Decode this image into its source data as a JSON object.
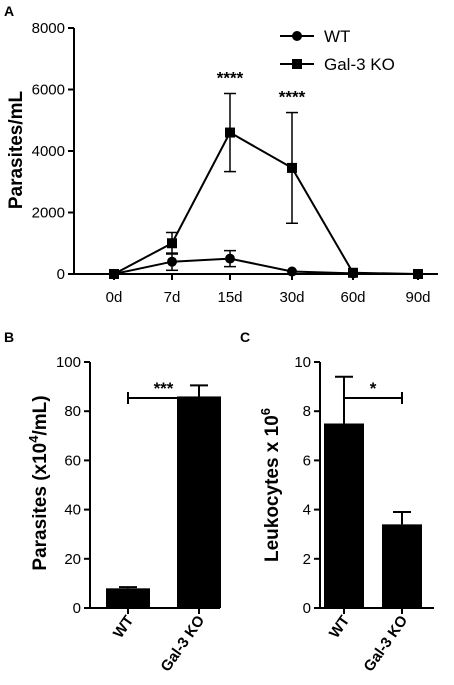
{
  "chart_data": [
    {
      "panel": "A",
      "type": "line",
      "x": [
        "0d",
        "7d",
        "15d",
        "30d",
        "60d",
        "90d"
      ],
      "ylabel": "Parasites/mL",
      "ylim": [
        0,
        8000
      ],
      "yticks": [
        "0",
        "2000",
        "4000",
        "6000",
        "8000"
      ],
      "legend_position": "top-right",
      "series": [
        {
          "name": "WT",
          "marker": "circle",
          "values": [
            0,
            400,
            500,
            80,
            20,
            null
          ],
          "err": [
            0,
            280,
            260,
            0,
            0,
            0
          ]
        },
        {
          "name": "Gal-3 KO",
          "marker": "square",
          "values": [
            0,
            1000,
            4600,
            3450,
            40,
            0
          ],
          "err": [
            0,
            350,
            1270,
            1800,
            0,
            0
          ]
        }
      ],
      "annotations": [
        {
          "x": "15d",
          "text": "****"
        },
        {
          "x": "30d",
          "text": "****"
        }
      ]
    },
    {
      "panel": "B",
      "type": "bar",
      "categories": [
        "WT",
        "Gal-3 KO"
      ],
      "values": [
        8,
        86
      ],
      "err": [
        0.5,
        4.5
      ],
      "ylabel_main": "Parasites (x10",
      "ylabel_sup": "4",
      "ylabel_end": "/mL)",
      "ylim": [
        0,
        100
      ],
      "yticks": [
        "0",
        "20",
        "40",
        "60",
        "80",
        "100"
      ],
      "significance": "***"
    },
    {
      "panel": "C",
      "type": "bar",
      "categories": [
        "WT",
        "Gal-3 KO"
      ],
      "values": [
        7.5,
        3.4
      ],
      "err": [
        1.9,
        0.5
      ],
      "ylabel_main": "Leukocytes x 10",
      "ylabel_sup": "6",
      "ylim": [
        0,
        10
      ],
      "yticks": [
        "0",
        "2",
        "4",
        "6",
        "8",
        "10"
      ],
      "significance": "*"
    }
  ],
  "colors": {
    "ink": "#000000",
    "background": "#ffffff"
  }
}
